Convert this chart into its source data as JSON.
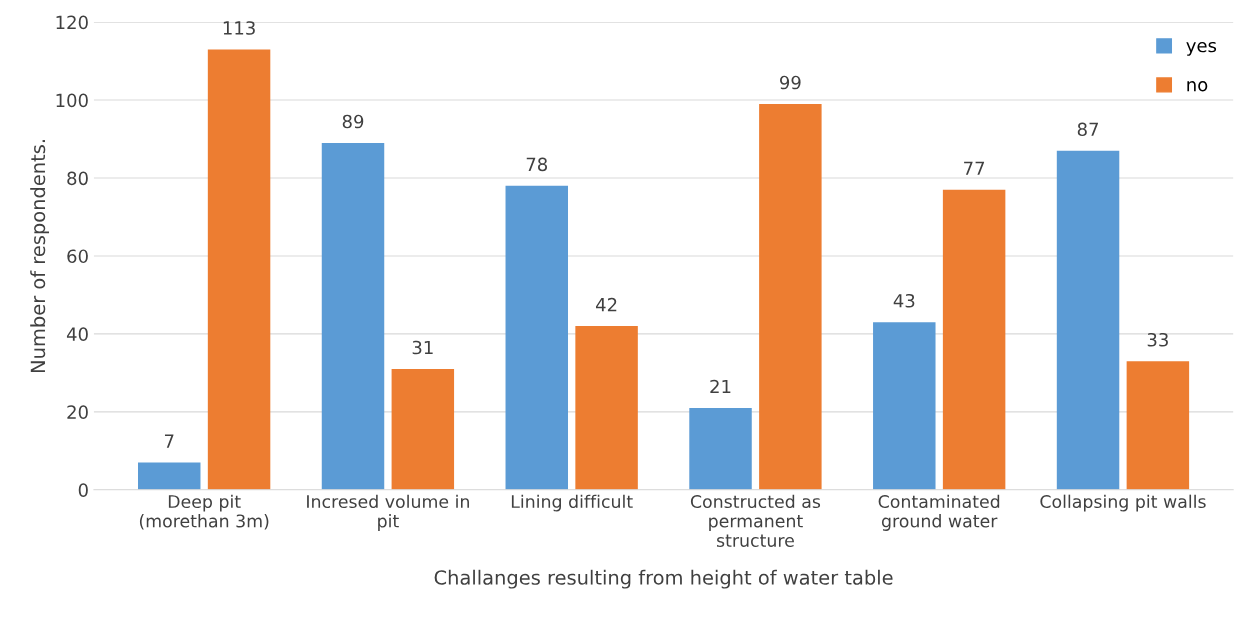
{
  "chart_data": {
    "type": "bar",
    "xlabel": "Challanges resulting from height of water table",
    "ylabel": "Number of respondents.",
    "categories": [
      "Deep pit\n(morethan 3m)",
      "Incresed volume in\npit",
      "Lining difficult",
      "Constructed as\npermanent\nstructure",
      "Contaminated\nground water",
      "Collapsing pit walls"
    ],
    "series": [
      {
        "name": "yes",
        "color": "#5b9bd5",
        "values": [
          7,
          89,
          78,
          21,
          43,
          87
        ]
      },
      {
        "name": "no",
        "color": "#ed7d31",
        "values": [
          113,
          31,
          42,
          99,
          77,
          33
        ]
      }
    ],
    "ylim": [
      0,
      120
    ],
    "yticks": [
      0,
      20,
      40,
      60,
      80,
      100,
      120
    ],
    "grid": "y",
    "legend": "top right",
    "data_labels": true
  }
}
